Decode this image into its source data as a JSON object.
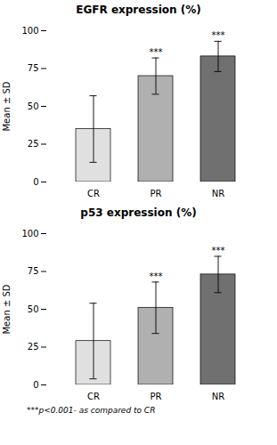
{
  "chart_data": [
    {
      "type": "bar",
      "title": "EGFR expression (%)",
      "categories": [
        "CR",
        "PR",
        "NR"
      ],
      "values": [
        35,
        70,
        83
      ],
      "errors": [
        22,
        12,
        10
      ],
      "colors": [
        "#e0e0e0",
        "#b0b0b0",
        "#707070"
      ],
      "annotations": [
        null,
        "***",
        "***"
      ],
      "ylabel": "Mean ± SD",
      "ylim": [
        0,
        100
      ],
      "yticks": [
        0,
        25,
        50,
        75,
        100
      ]
    },
    {
      "type": "bar",
      "title": "p53 expression (%)",
      "categories": [
        "CR",
        "PR",
        "NR"
      ],
      "values": [
        29,
        51,
        73
      ],
      "errors": [
        25,
        17,
        12
      ],
      "colors": [
        "#e0e0e0",
        "#b0b0b0",
        "#707070"
      ],
      "annotations": [
        null,
        "***",
        "***"
      ],
      "ylabel": "Mean ± SD",
      "ylim": [
        0,
        100
      ],
      "yticks": [
        0,
        25,
        50,
        75,
        100
      ],
      "caption": "***p<0.001- as compared to CR"
    }
  ]
}
